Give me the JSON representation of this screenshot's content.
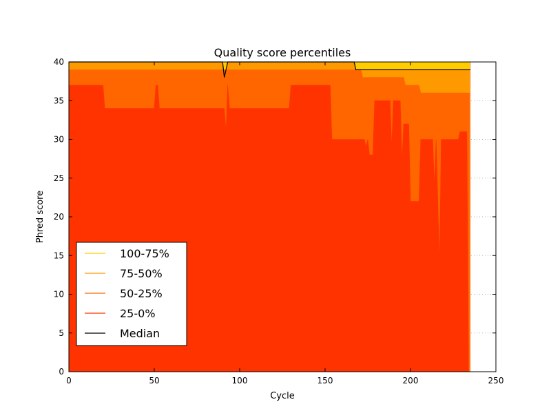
{
  "chart_data": {
    "type": "area",
    "title": "Quality score percentiles",
    "xlabel": "Cycle",
    "ylabel": "Phred score",
    "xlim": [
      0,
      250
    ],
    "ylim": [
      0,
      40
    ],
    "xticks": [
      0,
      50,
      100,
      150,
      200,
      250
    ],
    "yticks": [
      0,
      5,
      10,
      15,
      20,
      25,
      30,
      35,
      40
    ],
    "grid": "horizontal-dotted",
    "legend_position": "lower-left",
    "last_cycle": 235,
    "series": [
      {
        "name": "100-75%",
        "color": "#ffcc00",
        "points": [
          [
            0,
            40
          ],
          [
            235,
            40
          ]
        ]
      },
      {
        "name": "75-50%",
        "color": "#ff9900",
        "points": [
          [
            0,
            40
          ],
          [
            90,
            40
          ],
          [
            91,
            38
          ],
          [
            92,
            38
          ],
          [
            93,
            40
          ],
          [
            167,
            40
          ],
          [
            168,
            39
          ],
          [
            235,
            39
          ]
        ]
      },
      {
        "name": "50-25%",
        "color": "#ff6600",
        "points": [
          [
            0,
            39
          ],
          [
            171,
            39
          ],
          [
            172,
            38
          ],
          [
            196,
            38
          ],
          [
            197,
            37
          ],
          [
            205,
            37
          ],
          [
            206,
            36
          ],
          [
            235,
            36
          ]
        ]
      },
      {
        "name": "25-0%",
        "color": "#ff3300",
        "points": [
          [
            0,
            37
          ],
          [
            20,
            37
          ],
          [
            21,
            34
          ],
          [
            50,
            34
          ],
          [
            51,
            37
          ],
          [
            52,
            37
          ],
          [
            53,
            34
          ],
          [
            91,
            34
          ],
          [
            92,
            31
          ],
          [
            93,
            37
          ],
          [
            94,
            34
          ],
          [
            129,
            34
          ],
          [
            130,
            37
          ],
          [
            153,
            37
          ],
          [
            154,
            30
          ],
          [
            173,
            30
          ],
          [
            174,
            29
          ],
          [
            175,
            30
          ],
          [
            176,
            28
          ],
          [
            178,
            28
          ],
          [
            179,
            35
          ],
          [
            188,
            35
          ],
          [
            189,
            29
          ],
          [
            190,
            35
          ],
          [
            194,
            35
          ],
          [
            195,
            27
          ],
          [
            196,
            32
          ],
          [
            199,
            32
          ],
          [
            200,
            22
          ],
          [
            205,
            22
          ],
          [
            206,
            30
          ],
          [
            213,
            30
          ],
          [
            214,
            24
          ],
          [
            215,
            30
          ],
          [
            217,
            14
          ],
          [
            218,
            30
          ],
          [
            228,
            30
          ],
          [
            229,
            31
          ],
          [
            233,
            31
          ],
          [
            234,
            0
          ]
        ]
      },
      {
        "name": "Median",
        "color": "#000000",
        "points": [
          [
            0,
            40
          ],
          [
            90,
            40
          ],
          [
            91,
            38
          ],
          [
            93,
            40
          ],
          [
            167,
            40
          ],
          [
            168,
            39
          ],
          [
            235,
            39
          ]
        ]
      }
    ]
  }
}
